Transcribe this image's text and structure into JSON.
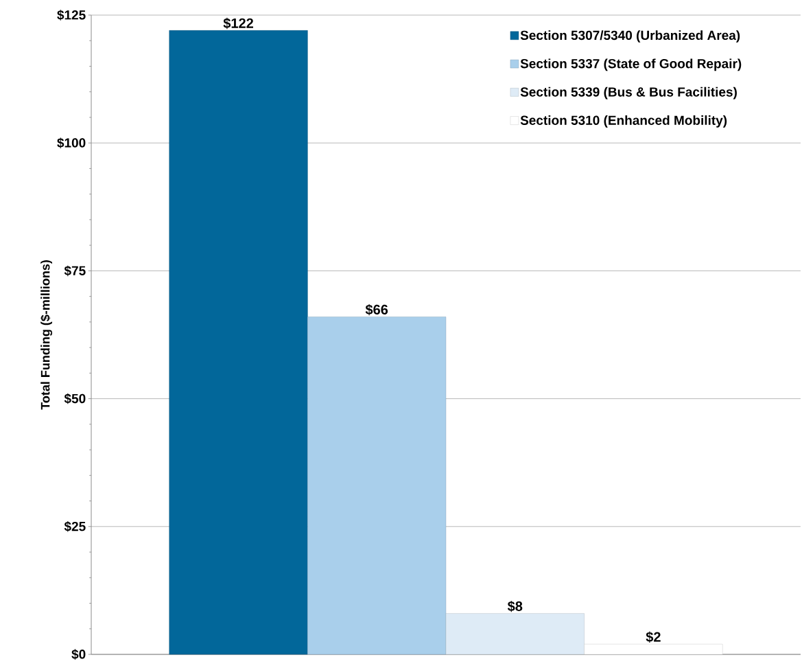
{
  "chart_data": {
    "type": "bar",
    "ylabel": "Total Funding ($-millions)",
    "categories": [
      null
    ],
    "series": [
      {
        "name": "Section 5307/5340 (Urbanized Area)",
        "color": "#02679a",
        "values": [
          122
        ],
        "value_labels": [
          "$122"
        ]
      },
      {
        "name": "Section 5337 (State of Good Repair)",
        "color": "#a9cfeb",
        "values": [
          66
        ],
        "value_labels": [
          "$66"
        ]
      },
      {
        "name": "Section 5339 (Bus & Bus Facilities)",
        "color": "#deebf6",
        "values": [
          8
        ],
        "value_labels": [
          "$8"
        ]
      },
      {
        "name": "Section 5310 (Enhanced Mobility)",
        "color": "#ffffff",
        "values": [
          2
        ],
        "value_labels": [
          "$2"
        ]
      }
    ],
    "ylim": [
      0,
      125
    ],
    "yticks": [
      {
        "value": 0,
        "label": "$0"
      },
      {
        "value": 25,
        "label": "$25"
      },
      {
        "value": 50,
        "label": "$50"
      },
      {
        "value": 75,
        "label": "$75"
      },
      {
        "value": 100,
        "label": "$100"
      },
      {
        "value": 125,
        "label": "$125"
      }
    ],
    "grid": "y",
    "legend": "top right"
  }
}
